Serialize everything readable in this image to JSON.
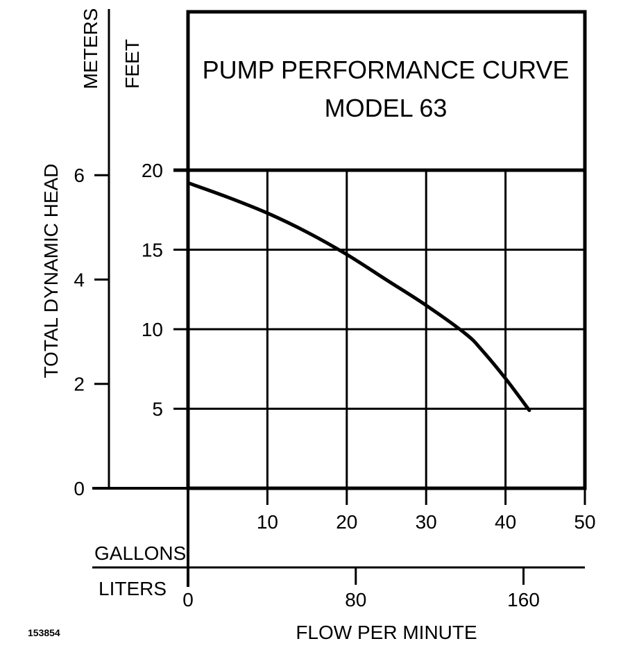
{
  "chart_data": {
    "type": "line",
    "title": "PUMP PERFORMANCE CURVE",
    "subtitle": "MODEL 63",
    "xlabel": "FLOW PER MINUTE",
    "ylabel": "TOTAL DYNAMIC HEAD",
    "y_units": {
      "meters": "METERS",
      "feet": "FEET"
    },
    "x_units": {
      "gallons": "GALLONS",
      "liters": "LITERS"
    },
    "xlim": [
      0,
      50
    ],
    "ylim": [
      0,
      20
    ],
    "grid": true,
    "feet_ticks": [
      "5",
      "10",
      "15",
      "20"
    ],
    "meter_ticks": [
      "0",
      "2",
      "4",
      "6"
    ],
    "gallon_ticks": [
      "10",
      "20",
      "30",
      "40",
      "50"
    ],
    "liter_ticks": [
      "0",
      "80",
      "160"
    ],
    "series": [
      {
        "x": [
          0,
          5,
          10,
          15,
          20,
          25,
          30,
          35,
          37,
          40,
          43
        ],
        "y": [
          19.2,
          18.3,
          17.3,
          16.1,
          14.7,
          13.1,
          11.5,
          9.7,
          8.7,
          6.9,
          4.9
        ]
      }
    ],
    "code": "153854"
  }
}
